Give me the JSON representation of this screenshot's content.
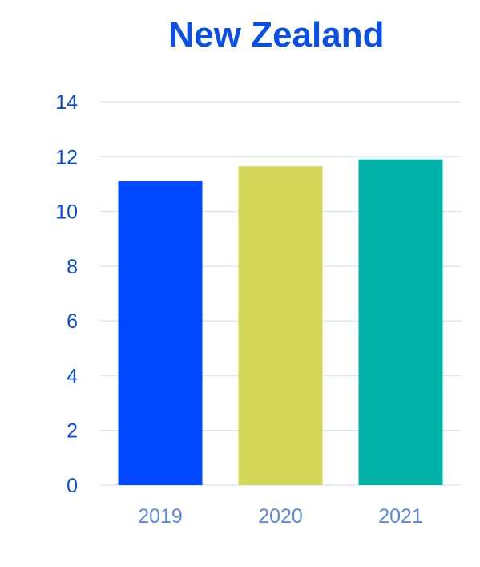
{
  "chart_data": {
    "type": "bar",
    "title": "New Zealand",
    "categories": [
      "2019",
      "2020",
      "2021"
    ],
    "values": [
      11.1,
      11.65,
      11.9
    ],
    "colors": [
      "#0048ff",
      "#d3d75a",
      "#00b2a8"
    ],
    "ylim": [
      0,
      14
    ],
    "yticks": [
      0,
      2,
      4,
      6,
      8,
      10,
      12,
      14
    ],
    "grid": true,
    "xlabel": "",
    "ylabel": ""
  }
}
